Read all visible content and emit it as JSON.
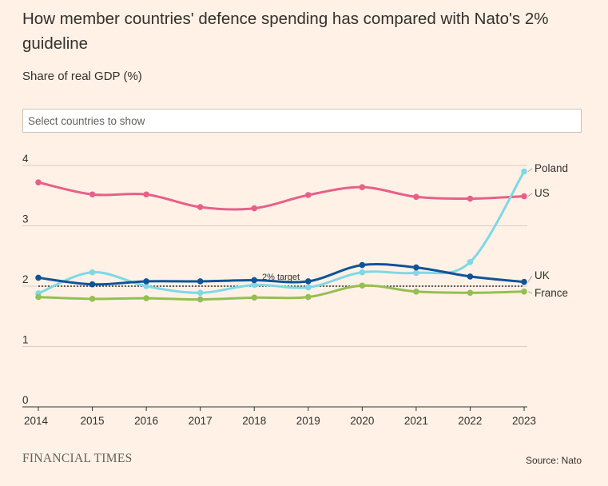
{
  "title": "How member countries' defence spending has compared with Nato's 2% guideline",
  "subtitle": "Share of real GDP (%)",
  "search": {
    "placeholder": "Select countries to show"
  },
  "brand": "FINANCIAL TIMES",
  "source": "Source: Nato",
  "chart_data": {
    "type": "line",
    "title": "How member countries' defence spending has compared with Nato's 2% guideline",
    "ylabel": "Share of real GDP (%)",
    "xlabel": "",
    "x": [
      "2014",
      "2015",
      "2016",
      "2017",
      "2018",
      "2019",
      "2020",
      "2021",
      "2022",
      "2023"
    ],
    "ylim": [
      0,
      4
    ],
    "yticks": [
      "0",
      "1",
      "2",
      "3",
      "4"
    ],
    "grid": true,
    "series": [
      {
        "name": "US",
        "color": "#e8608a",
        "values": [
          3.72,
          3.52,
          3.52,
          3.31,
          3.29,
          3.51,
          3.64,
          3.48,
          3.45,
          3.49
        ]
      },
      {
        "name": "Poland",
        "color": "#7fd8e5",
        "values": [
          1.88,
          2.23,
          2.0,
          1.89,
          2.02,
          1.98,
          2.23,
          2.22,
          2.4,
          3.9
        ]
      },
      {
        "name": "UK",
        "color": "#0f5499",
        "values": [
          2.14,
          2.03,
          2.08,
          2.08,
          2.1,
          2.08,
          2.35,
          2.31,
          2.16,
          2.07
        ]
      },
      {
        "name": "France",
        "color": "#96bf51",
        "values": [
          1.82,
          1.79,
          1.8,
          1.78,
          1.81,
          1.82,
          2.01,
          1.91,
          1.89,
          1.91
        ]
      }
    ],
    "reference_line": {
      "value": 2,
      "label": "2% target"
    }
  }
}
